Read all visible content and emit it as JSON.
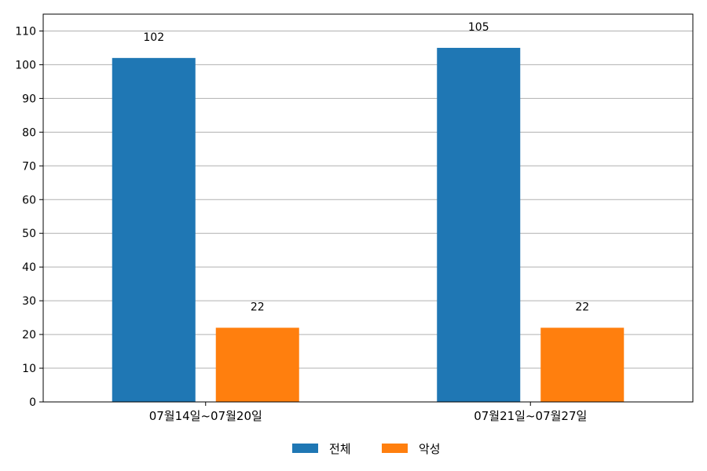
{
  "chart_data": {
    "type": "bar",
    "categories": [
      "07월14일~07월20일",
      "07월21일~07월27일"
    ],
    "series": [
      {
        "name": "전체",
        "values": [
          102,
          105
        ],
        "color": "#1f77b4"
      },
      {
        "name": "악성",
        "values": [
          22,
          22
        ],
        "color": "#ff7f0e"
      }
    ],
    "ylim": [
      0,
      115
    ],
    "yticks": [
      0,
      10,
      20,
      30,
      40,
      50,
      60,
      70,
      80,
      90,
      100,
      110
    ],
    "grid": "horizontal",
    "legend_position": "bottom-center",
    "xlabel": "",
    "ylabel": "",
    "title": ""
  }
}
